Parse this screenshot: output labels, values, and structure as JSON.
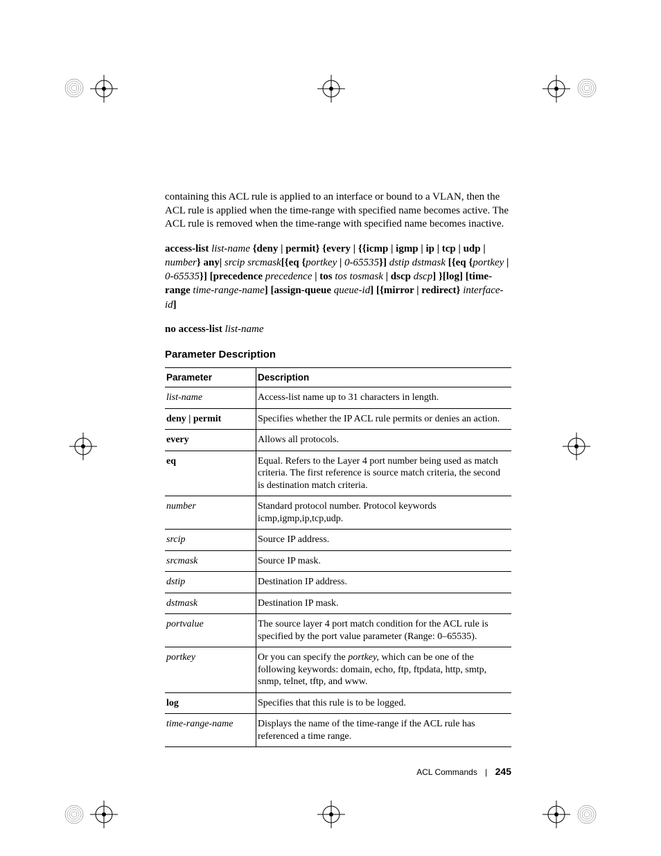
{
  "intro_text": "containing this ACL rule is applied to an interface or bound to a VLAN, then the ACL rule is applied when the time-range with specified name becomes active. The ACL rule is removed when the time-range with specified name becomes inactive.",
  "syntax": {
    "s1_b": "access-list ",
    "s1_i": "list-name ",
    "s2_b": "{deny | permit} {every | {{icmp | igmp | ip | tcp | udp | ",
    "s2_i": " number",
    "s3_b": "} any| ",
    "s3_i": " srcip srcmask",
    "s4_b": "[{eq {",
    "s4_i": "portkey ",
    "s5_b": "| ",
    "s5_i": " 0-65535",
    "s6_b": "}] ",
    "s6_i": "dstip dstmask ",
    "s7_b": "[{eq {",
    "s7_i": "portkey ",
    "s8_b": "|  ",
    "s8_i": "0-65535",
    "s9_b": "}] [precedence ",
    "s9_i": "precedence ",
    "s10_b": "| tos ",
    "s10_i": "tos tosmask ",
    "s11_b": " | dscp ",
    "s11_i": "dscp",
    "s12_b": "] }[log] [time-range ",
    "s12_i": "time-range-name",
    "s13_b": "] [assign-queue ",
    "s13_i": "queue-id",
    "s14_b": "] [{mirror | redirect} ",
    "s14_i": "interface-id",
    "s15_b": "]",
    "no1_b": "no access-list ",
    "no1_i": "list-name"
  },
  "section_heading": "Parameter Description",
  "table": {
    "col1_header": "Parameter",
    "col2_header": "Description",
    "rows": [
      {
        "param_i": "list-name",
        "param_b": "",
        "desc": "Access-list name up to 31 characters in length."
      },
      {
        "param_i": "",
        "param_b": "deny | permit",
        "desc": "Specifies whether the IP ACL rule permits or denies an action."
      },
      {
        "param_i": "",
        "param_b": "every",
        "desc": "Allows all protocols."
      },
      {
        "param_i": "",
        "param_b": "eq",
        "desc": "Equal. Refers to the Layer 4 port number being used as match criteria. The first reference is source match criteria, the second is destination match criteria."
      },
      {
        "param_i": "number",
        "param_b": "",
        "desc": "Standard protocol number. Protocol keywords icmp,igmp,ip,tcp,udp."
      },
      {
        "param_i": "srcip",
        "param_b": "",
        "desc": "Source IP address."
      },
      {
        "param_i": "srcmask",
        "param_b": "",
        "desc": "Source IP mask."
      },
      {
        "param_i": "dstip",
        "param_b": "",
        "desc": "Destination IP address."
      },
      {
        "param_i": "dstmask",
        "param_b": "",
        "desc": "Destination IP mask."
      },
      {
        "param_i": "portvalue",
        "param_b": "",
        "desc": "The source layer 4 port match condition for the ACL rule is specified by the port value parameter (Range:  0–65535)."
      },
      {
        "param_i": "portkey",
        "param_b": "",
        "desc_pre": "Or you can specify the ",
        "desc_i": "portkey,",
        "desc_post": " which can be one of the following keywords: domain, echo, ftp, ftpdata, http, smtp, snmp, telnet, tftp, and www."
      },
      {
        "param_i": "",
        "param_b": "log",
        "desc": "Specifies that this rule is to be logged."
      },
      {
        "param_i": "time-range-name",
        "param_b": "",
        "desc": "Displays the name of the time-range if the ACL rule has referenced a time range."
      }
    ]
  },
  "footer": {
    "section": "ACL Commands",
    "page": "245"
  },
  "crop_mark_svg": "<svg width='40' height='40' viewBox='0 0 40 40'><circle cx='20' cy='20' r='12' fill='none' stroke='#000' stroke-width='1'/><line x1='20' y1='0' x2='20' y2='40' stroke='#000' stroke-width='1'/><line x1='0' y1='20' x2='40' y2='20' stroke='#000' stroke-width='1'/><circle cx='20' cy='20' r='3' fill='#000'/></svg>",
  "rosette_svg": "<svg width='30' height='30' viewBox='0 0 30 30'><circle cx='15' cy='15' r='13' fill='none' stroke='#555' stroke-width='0.5'/><g stroke='#555' stroke-width='0.4' fill='none'><circle cx='15' cy='15' r='10'/><circle cx='15' cy='15' r='7'/><circle cx='15' cy='15' r='4'/></g></svg>"
}
